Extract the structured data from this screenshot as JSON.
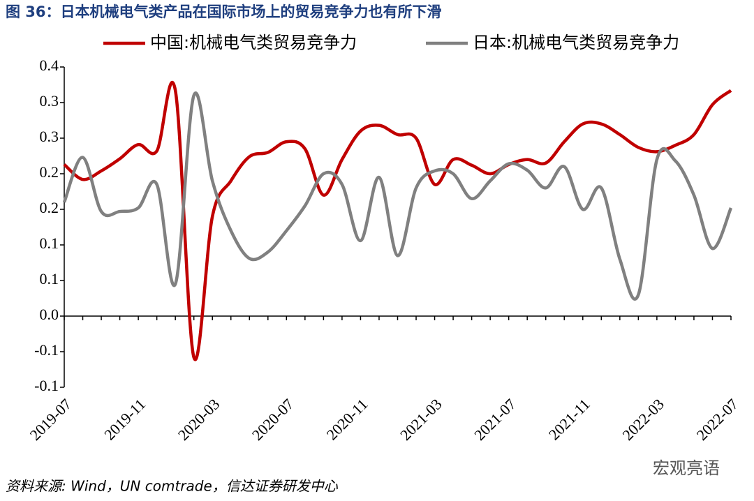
{
  "chart_data": {
    "type": "line",
    "title": "图 36：日本机械电气类产品在国际市场上的贸易竞争力也有所下滑",
    "source": "资料来源: Wind，UN comtrade，信达证券研发中心",
    "watermark": "宏观亮语",
    "categories": [
      "2019-07",
      null,
      null,
      null,
      "2019-11",
      null,
      null,
      null,
      "2020-03",
      null,
      null,
      null,
      "2020-07",
      null,
      null,
      null,
      "2020-11",
      null,
      null,
      null,
      "2021-03",
      null,
      null,
      null,
      "2021-07",
      null,
      null,
      null,
      "2021-11",
      null,
      null,
      null,
      "2022-03",
      null,
      null,
      null,
      "2022-07"
    ],
    "series": [
      {
        "name": "中国:机械电气类贸易竞争力",
        "color": "#c00000",
        "values": [
          0.213,
          0.192,
          0.204,
          0.221,
          0.241,
          0.232,
          0.317,
          -0.058,
          0.14,
          0.19,
          0.224,
          0.23,
          0.245,
          0.235,
          0.17,
          0.22,
          0.26,
          0.268,
          0.255,
          0.25,
          0.185,
          0.22,
          0.212,
          0.2,
          0.213,
          0.22,
          0.215,
          0.245,
          0.27,
          0.27,
          0.255,
          0.237,
          0.231,
          0.24,
          0.255,
          0.297,
          0.317
        ]
      },
      {
        "name": "日本:机械电气类贸易竞争力",
        "color": "#808080",
        "values": [
          0.16,
          0.223,
          0.147,
          0.147,
          0.152,
          0.185,
          0.045,
          0.31,
          0.19,
          0.12,
          0.081,
          0.09,
          0.12,
          0.155,
          0.2,
          0.185,
          0.106,
          0.195,
          0.085,
          0.18,
          0.204,
          0.2,
          0.165,
          0.19,
          0.214,
          0.205,
          0.18,
          0.21,
          0.15,
          0.18,
          0.08,
          0.03,
          0.22,
          0.218,
          0.17,
          0.095,
          0.152
        ]
      }
    ],
    "ylim": [
      -0.1,
      0.35
    ],
    "yticks": [
      {
        "value": 0.35,
        "label": "0.4"
      },
      0.3,
      {
        "value": 0.25,
        "label": "0.3"
      },
      0.2,
      {
        "value": 0.15,
        "label": "0.2"
      },
      0.1,
      {
        "value": 0.05,
        "label": "0.1"
      },
      {
        "value": 0,
        "label": "0.0"
      },
      {
        "value": -0.05,
        "label": "-0.1"
      },
      -0.1
    ]
  }
}
